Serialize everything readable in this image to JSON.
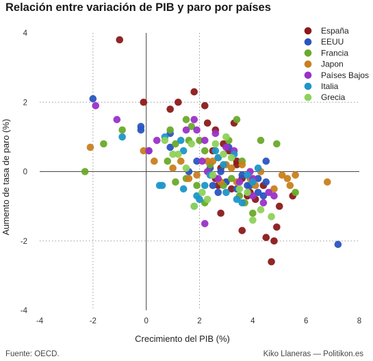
{
  "title": "Relación entre variación de PIB y paro por países",
  "source": "Fuente: OECD.",
  "credit": "Kiko Llaneras — Politikon.es",
  "chart_data": {
    "type": "scatter",
    "xlabel": "Crecimiento del PIB (%)",
    "ylabel": "Aumento de tasa de paro (%)",
    "xlim": [
      -4,
      8
    ],
    "ylim": [
      -4,
      4
    ],
    "xticks": [
      -4,
      -2,
      0,
      2,
      4,
      6,
      8
    ],
    "yticks": [
      -4,
      -2,
      0,
      2,
      4
    ],
    "grid": "dotted at x=±2 and y=±2",
    "legend_position": "top-right",
    "series": [
      {
        "name": "España",
        "color": "#8b1a1a",
        "points": [
          [
            -1.0,
            3.8
          ],
          [
            -0.1,
            2.0
          ],
          [
            1.2,
            2.0
          ],
          [
            0.9,
            1.8
          ],
          [
            1.8,
            2.3
          ],
          [
            2.2,
            1.9
          ],
          [
            2.6,
            1.2
          ],
          [
            2.3,
            1.4
          ],
          [
            3.3,
            1.4
          ],
          [
            2.5,
            0.6
          ],
          [
            2.9,
            0.8
          ],
          [
            3.1,
            0.6
          ],
          [
            3.4,
            0.2
          ],
          [
            2.8,
            0.1
          ],
          [
            3.6,
            -0.2
          ],
          [
            3.9,
            -0.6
          ],
          [
            4.1,
            -0.8
          ],
          [
            3.2,
            -0.5
          ],
          [
            3.0,
            -0.3
          ],
          [
            2.7,
            -0.4
          ],
          [
            3.8,
            -0.7
          ],
          [
            4.4,
            -0.4
          ],
          [
            5.0,
            -1.0
          ],
          [
            5.5,
            -0.7
          ],
          [
            4.9,
            -1.6
          ],
          [
            4.5,
            -1.9
          ],
          [
            4.8,
            -2.0
          ],
          [
            4.7,
            -2.6
          ],
          [
            3.6,
            -1.7
          ],
          [
            2.8,
            -1.2
          ],
          [
            3.4,
            0.3
          ],
          [
            2.6,
            -0.2
          ]
        ]
      },
      {
        "name": "EEUU",
        "color": "#2a55c0",
        "points": [
          [
            -2.0,
            2.1
          ],
          [
            -0.2,
            1.3
          ],
          [
            -0.2,
            1.2
          ],
          [
            0.1,
            0.6
          ],
          [
            0.9,
            0.7
          ],
          [
            0.9,
            1.1
          ],
          [
            1.9,
            0.3
          ],
          [
            2.4,
            0.1
          ],
          [
            2.8,
            0.0
          ],
          [
            3.0,
            -0.3
          ],
          [
            3.4,
            -0.5
          ],
          [
            3.8,
            -0.4
          ],
          [
            4.2,
            -0.2
          ],
          [
            4.5,
            0.3
          ],
          [
            4.5,
            -0.3
          ],
          [
            4.2,
            -0.6
          ],
          [
            3.1,
            0.7
          ],
          [
            2.5,
            -0.4
          ],
          [
            1.6,
            0.0
          ],
          [
            7.2,
            -2.1
          ],
          [
            4.4,
            -0.7
          ],
          [
            3.9,
            -0.4
          ],
          [
            2.7,
            -0.6
          ],
          [
            3.6,
            -0.1
          ]
        ]
      },
      {
        "name": "Francia",
        "color": "#6aaa2a",
        "points": [
          [
            -2.3,
            0.0
          ],
          [
            -1.6,
            0.8
          ],
          [
            -0.9,
            1.2
          ],
          [
            0.9,
            1.2
          ],
          [
            1.5,
            1.5
          ],
          [
            1.6,
            0.9
          ],
          [
            1.1,
            0.8
          ],
          [
            1.7,
            1.3
          ],
          [
            2.2,
            0.6
          ],
          [
            2.0,
            0.9
          ],
          [
            3.1,
            0.9
          ],
          [
            3.4,
            1.5
          ],
          [
            3.6,
            0.3
          ],
          [
            4.0,
            -0.3
          ],
          [
            4.3,
            0.9
          ],
          [
            4.0,
            -1.2
          ],
          [
            4.9,
            0.8
          ],
          [
            5.6,
            -0.6
          ],
          [
            3.5,
            -0.7
          ],
          [
            2.9,
            -0.4
          ],
          [
            2.4,
            0.2
          ],
          [
            1.9,
            -0.4
          ],
          [
            1.5,
            -0.2
          ],
          [
            1.1,
            -0.3
          ],
          [
            0.8,
            0.3
          ],
          [
            2.2,
            -0.9
          ],
          [
            3.2,
            -0.2
          ],
          [
            3.7,
            -0.9
          ]
        ]
      },
      {
        "name": "Japon",
        "color": "#c8801e",
        "points": [
          [
            -2.1,
            0.7
          ],
          [
            -0.1,
            0.6
          ],
          [
            0.3,
            0.3
          ],
          [
            1.0,
            0.1
          ],
          [
            1.3,
            0.3
          ],
          [
            1.9,
            -0.1
          ],
          [
            2.5,
            0.3
          ],
          [
            3.0,
            0.2
          ],
          [
            2.8,
            -0.3
          ],
          [
            3.6,
            0.2
          ],
          [
            3.9,
            -0.2
          ],
          [
            4.3,
            0.0
          ],
          [
            4.8,
            -0.5
          ],
          [
            5.1,
            -0.1
          ],
          [
            5.4,
            -0.4
          ],
          [
            5.6,
            -0.1
          ],
          [
            6.8,
            -0.3
          ],
          [
            2.3,
            0.3
          ],
          [
            4.1,
            -0.4
          ],
          [
            3.2,
            0.1
          ],
          [
            2.7,
            0.4
          ],
          [
            1.6,
            -0.2
          ],
          [
            3.4,
            -0.3
          ],
          [
            5.3,
            -0.2
          ]
        ]
      },
      {
        "name": "Países Bajos",
        "color": "#9b30c8",
        "points": [
          [
            -1.9,
            1.9
          ],
          [
            -1.1,
            1.5
          ],
          [
            0.1,
            0.6
          ],
          [
            0.4,
            0.9
          ],
          [
            1.5,
            1.2
          ],
          [
            1.8,
            1.5
          ],
          [
            2.2,
            0.9
          ],
          [
            2.6,
            1.1
          ],
          [
            3.0,
            0.7
          ],
          [
            2.3,
            0.0
          ],
          [
            2.7,
            -0.2
          ],
          [
            3.5,
            -0.3
          ],
          [
            4.0,
            -0.7
          ],
          [
            4.4,
            -0.9
          ],
          [
            4.6,
            -0.6
          ],
          [
            4.0,
            -0.2
          ],
          [
            2.2,
            -1.5
          ],
          [
            2.1,
            0.3
          ],
          [
            3.3,
            0.6
          ],
          [
            4.8,
            -0.7
          ],
          [
            1.9,
            1.2
          ],
          [
            3.9,
            0.0
          ]
        ]
      },
      {
        "name": "Italia",
        "color": "#1e96c8",
        "points": [
          [
            -0.9,
            1.0
          ],
          [
            0.5,
            -0.4
          ],
          [
            0.6,
            -0.4
          ],
          [
            0.7,
            1.0
          ],
          [
            1.4,
            0.6
          ],
          [
            1.8,
            -1.0
          ],
          [
            1.9,
            -0.7
          ],
          [
            2.2,
            -0.4
          ],
          [
            2.4,
            -0.1
          ],
          [
            2.6,
            0.6
          ],
          [
            2.7,
            0.4
          ],
          [
            3.3,
            0.5
          ],
          [
            3.4,
            -0.8
          ],
          [
            3.6,
            -0.9
          ],
          [
            4.0,
            -0.3
          ],
          [
            4.2,
            0.1
          ],
          [
            1.3,
            0.9
          ],
          [
            3.0,
            -0.6
          ],
          [
            2.0,
            -0.8
          ],
          [
            3.8,
            -0.1
          ],
          [
            1.4,
            -0.5
          ],
          [
            2.9,
            0.2
          ]
        ]
      },
      {
        "name": "Grecia",
        "color": "#8ed25a",
        "points": [
          [
            0.7,
            0.9
          ],
          [
            1.0,
            0.5
          ],
          [
            1.2,
            0.5
          ],
          [
            1.7,
            0.8
          ],
          [
            1.8,
            -1.0
          ],
          [
            2.1,
            -0.6
          ],
          [
            2.3,
            -0.8
          ],
          [
            2.6,
            0.8
          ],
          [
            2.9,
            0.5
          ],
          [
            3.2,
            0.4
          ],
          [
            3.5,
            -0.5
          ],
          [
            3.8,
            -0.6
          ],
          [
            4.0,
            -1.4
          ],
          [
            4.3,
            -1.1
          ],
          [
            4.7,
            -1.3
          ],
          [
            1.5,
            0.1
          ],
          [
            2.5,
            -0.1
          ],
          [
            3.0,
            1.0
          ]
        ]
      }
    ]
  }
}
